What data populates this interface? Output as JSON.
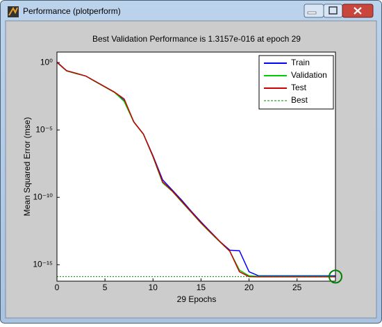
{
  "window": {
    "title": "Performance (plotperform)"
  },
  "chart_data": {
    "type": "line",
    "title": "Best Validation Performance is 1.3157e-016 at epoch 29",
    "xlabel": "29 Epochs",
    "ylabel": "Mean Squared Error  (mse)",
    "log_y": true,
    "grid": false,
    "legend": "upper right",
    "x": [
      0,
      1,
      2,
      3,
      4,
      5,
      6,
      7,
      8,
      9,
      10,
      11,
      12,
      13,
      14,
      15,
      16,
      17,
      18,
      19,
      20,
      21,
      22,
      23,
      24,
      25,
      26,
      27,
      28,
      29
    ],
    "xlim": [
      0,
      29
    ],
    "xticks": [
      0,
      5,
      10,
      15,
      20,
      25
    ],
    "ylim": [
      6e-17,
      6
    ],
    "yticks": [
      {
        "value": 1,
        "label": "10⁰"
      },
      {
        "value": 1e-05,
        "label": "10⁻⁵"
      },
      {
        "value": 1e-10,
        "label": "10⁻¹⁰"
      },
      {
        "value": 1e-15,
        "label": "10⁻¹⁵"
      }
    ],
    "series": [
      {
        "name": "Train",
        "color": "#0000ff",
        "values": [
          1.1,
          0.25,
          0.16,
          0.1,
          0.04,
          0.016,
          0.0063,
          0.0015,
          4e-05,
          5e-06,
          1.2e-07,
          2e-09,
          3.5e-10,
          6e-11,
          9e-12,
          1.5e-12,
          2.7e-13,
          5e-14,
          1.2e-14,
          1.1e-14,
          3e-16,
          1.5e-16,
          1.5e-16,
          1.5e-16,
          1.5e-16,
          1.5e-16,
          1.5e-16,
          1.5e-16,
          1.5e-16,
          1.5e-16
        ]
      },
      {
        "name": "Validation",
        "color": "#00cc00",
        "values": [
          1.0,
          0.24,
          0.15,
          0.1,
          0.038,
          0.015,
          0.006,
          0.0013,
          3.8e-05,
          4.8e-06,
          1e-07,
          1.2e-09,
          2.8e-10,
          4.5e-11,
          7.5e-12,
          1.2e-12,
          2.3e-13,
          4.6e-14,
          1e-14,
          4e-16,
          1.5e-16,
          1.35e-16,
          1.35e-16,
          1.35e-16,
          1.35e-16,
          1.35e-16,
          1.35e-16,
          1.35e-16,
          1.35e-16,
          1.3157e-16
        ]
      },
      {
        "name": "Test",
        "color": "#cc0000",
        "values": [
          1.05,
          0.25,
          0.16,
          0.1,
          0.04,
          0.016,
          0.0063,
          0.002,
          4e-05,
          5e-06,
          1.1e-07,
          1.4e-09,
          3e-10,
          5e-11,
          8e-12,
          1.3e-12,
          2.5e-13,
          5e-14,
          1e-14,
          3e-16,
          1.3e-16,
          1.25e-16,
          1.25e-16,
          1.25e-16,
          1.25e-16,
          1.25e-16,
          1.25e-16,
          1.25e-16,
          1.25e-16,
          1.25e-16
        ]
      }
    ],
    "best": {
      "name": "Best",
      "color": "#008000",
      "x": 29,
      "y": 1.3157e-16
    }
  }
}
